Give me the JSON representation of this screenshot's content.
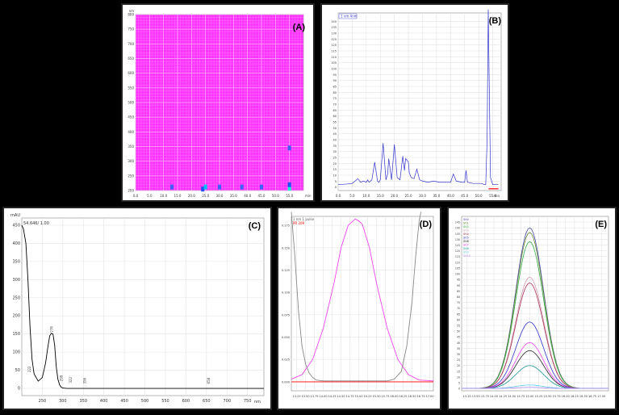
{
  "panels": {
    "a": {
      "label": "(A)"
    },
    "b": {
      "label": "(B)"
    },
    "c": {
      "label": "(C)"
    },
    "d": {
      "label": "(D)"
    },
    "e": {
      "label": "(E)"
    }
  },
  "chart_data": [
    {
      "id": "A",
      "type": "heatmap",
      "title": "",
      "xlabel": "min",
      "ylabel": "nm",
      "x_ticks": [
        "0.0",
        "5.0",
        "10.0",
        "15.0",
        "20.0",
        "25.0",
        "30.0",
        "35.0",
        "40.0",
        "45.0",
        "50.0",
        "55.0"
      ],
      "y_ticks": [
        "200",
        "250",
        "300",
        "350",
        "400",
        "450",
        "500",
        "550",
        "600",
        "650",
        "700",
        "750",
        "800"
      ],
      "xlim": [
        0,
        60
      ],
      "ylim": [
        200,
        800
      ],
      "background_color": "#ff33ff",
      "hotspots": [
        {
          "x": 24,
          "y": 205,
          "color": "#1f4fff"
        },
        {
          "x": 25,
          "y": 212,
          "color": "#00bfff"
        },
        {
          "x": 55,
          "y": 208,
          "color": "#00ffcc"
        },
        {
          "x": 55,
          "y": 220,
          "color": "#1f4fff"
        },
        {
          "x": 13,
          "y": 212,
          "color": "#3f5fff"
        },
        {
          "x": 30,
          "y": 212,
          "color": "#3f5fff"
        },
        {
          "x": 38,
          "y": 212,
          "color": "#3f5fff"
        },
        {
          "x": 45,
          "y": 212,
          "color": "#3f5fff"
        },
        {
          "x": 55,
          "y": 345,
          "color": "#3f5fff"
        }
      ]
    },
    {
      "id": "B",
      "type": "line",
      "title": "",
      "legend": [
        "1 nm 4nm"
      ],
      "xlabel": "min",
      "x_ticks": [
        "0.0",
        "5.0",
        "10.0",
        "15.0",
        "20.0",
        "25.0",
        "30.0",
        "35.0",
        "40.0",
        "45.0",
        "50.0",
        "55.0"
      ],
      "y_ticks": [
        "0",
        "5",
        "10",
        "15",
        "20",
        "25",
        "30",
        "35",
        "40",
        "45",
        "50",
        "55",
        "60",
        "65",
        "70",
        "75",
        "80",
        "85",
        "90",
        "95",
        "100",
        "105",
        "110",
        "115",
        "120",
        "125",
        "130",
        "135",
        "140"
      ],
      "xlim": [
        0,
        58
      ],
      "ylim": [
        -3,
        147
      ],
      "series": [
        {
          "color": "#3333cc",
          "x": [
            0,
            3,
            5,
            7,
            8,
            9,
            10,
            10.5,
            11,
            12,
            13,
            14,
            14.5,
            15,
            16,
            17,
            17.6,
            18,
            19,
            20,
            21,
            22,
            23,
            23.6,
            24,
            25,
            25.3,
            26,
            27,
            28,
            29,
            30,
            32,
            34,
            36,
            38,
            40,
            41,
            42,
            44,
            45,
            45.5,
            46,
            48,
            50,
            51,
            52,
            52.5,
            53,
            53.4,
            53.8,
            54.2,
            55,
            56,
            57
          ],
          "y": [
            2,
            2.5,
            3,
            7,
            4,
            5,
            4,
            6,
            4,
            6,
            21,
            5,
            4,
            6,
            37,
            6,
            11,
            24,
            6,
            36,
            8,
            6,
            26,
            14,
            24,
            21,
            12,
            8,
            7,
            15,
            6,
            5,
            4,
            5,
            4,
            4,
            4,
            11,
            5,
            4,
            4,
            14,
            4,
            3,
            3,
            3,
            2,
            2,
            40,
            150,
            80,
            8,
            2,
            2,
            2
          ]
        },
        {
          "color": "#ff0000",
          "x": [
            53.5,
            57
          ],
          "y": [
            -1.5,
            -1.5
          ]
        }
      ]
    },
    {
      "id": "C",
      "type": "line",
      "title": "",
      "legend": [
        "54.646/ 1.00"
      ],
      "ylabel": "mAU",
      "xlabel": "nm",
      "x_ticks": [
        "250",
        "300",
        "350",
        "400",
        "450",
        "500",
        "550",
        "600",
        "650",
        "700",
        "750"
      ],
      "y_ticks": [
        "0",
        "50",
        "100",
        "150",
        "200",
        "250",
        "300",
        "350",
        "400",
        "450"
      ],
      "xlim": [
        200,
        790
      ],
      "ylim": [
        -20,
        470
      ],
      "annotations": [
        {
          "x": 222,
          "y": 40,
          "label": "222"
        },
        {
          "x": 276,
          "y": 150,
          "label": "276"
        },
        {
          "x": 299,
          "y": 15,
          "label": "299"
        },
        {
          "x": 322,
          "y": 10,
          "label": "322"
        },
        {
          "x": 356,
          "y": 8,
          "label": "356"
        },
        {
          "x": 658,
          "y": 8,
          "label": "658"
        }
      ],
      "series": [
        {
          "color": "#000000",
          "x": [
            200,
            204,
            210,
            215,
            220,
            225,
            230,
            240,
            250,
            258,
            263,
            268,
            272,
            276,
            280,
            284,
            288,
            292,
            296,
            300,
            310,
            330,
            360,
            400,
            450,
            500,
            600,
            700,
            790
          ],
          "y": [
            450,
            440,
            400,
            300,
            170,
            80,
            40,
            20,
            30,
            70,
            110,
            145,
            152,
            150,
            120,
            60,
            25,
            10,
            3,
            1,
            0,
            0,
            0,
            0,
            0,
            0,
            0,
            0,
            0
          ]
        }
      ]
    },
    {
      "id": "D",
      "type": "line",
      "title": "",
      "legend": [
        "1 nm 1 pulse",
        "PR 209"
      ],
      "x_ticks": [
        "13.25",
        "13.50",
        "13.75",
        "14.00",
        "14.25",
        "14.50",
        "14.75",
        "15.00",
        "15.25",
        "15.50",
        "15.75",
        "16.00",
        "16.25",
        "16.50",
        "16.75",
        "17.00"
      ],
      "y_ticks": [
        "0.000",
        "0.025",
        "0.050",
        "0.075",
        "0.100",
        "0.125",
        "0.150",
        "0.175"
      ],
      "xlim": [
        13.1,
        17.1
      ],
      "ylim": [
        -0.01,
        0.185
      ],
      "series": [
        {
          "color": "#ee44ee",
          "x": [
            13.1,
            13.4,
            13.7,
            14.0,
            14.3,
            14.5,
            14.7,
            14.9,
            15.0,
            15.1,
            15.3,
            15.5,
            15.8,
            16.1,
            16.4,
            16.7,
            17.1
          ],
          "y": [
            0.003,
            0.008,
            0.025,
            0.06,
            0.11,
            0.15,
            0.175,
            0.182,
            0.18,
            0.176,
            0.15,
            0.11,
            0.06,
            0.025,
            0.008,
            0.002,
            0.001
          ]
        },
        {
          "color": "#888888",
          "x": [
            13.1,
            13.2,
            13.3,
            13.4,
            13.5,
            13.6,
            13.7,
            13.8,
            14.0,
            15.8,
            16.0,
            16.2,
            16.35,
            16.5,
            16.6,
            16.7,
            16.75
          ],
          "y": [
            0.19,
            0.14,
            0.08,
            0.04,
            0.02,
            0.01,
            0.005,
            0.002,
            0.001,
            0.001,
            0.003,
            0.012,
            0.04,
            0.09,
            0.14,
            0.18,
            0.19
          ]
        },
        {
          "color": "#ff0000",
          "x": [
            13.1,
            17.1
          ],
          "y": [
            0.0,
            0.0
          ]
        }
      ]
    },
    {
      "id": "E",
      "type": "line",
      "title": "",
      "x_ticks": [
        "13.25",
        "13.50",
        "13.75",
        "14.00",
        "14.25",
        "14.50",
        "14.75",
        "15.00",
        "15.25",
        "15.50",
        "15.75",
        "16.00",
        "16.25",
        "16.50",
        "16.75",
        "17.00"
      ],
      "y_ticks": [
        "0",
        "5",
        "10",
        "15",
        "20",
        "25",
        "30",
        "35",
        "40",
        "45",
        "50",
        "55",
        "60",
        "65",
        "70",
        "75",
        "80",
        "85",
        "90",
        "95",
        "100",
        "105",
        "110",
        "115",
        "120",
        "125",
        "130",
        "135",
        "140",
        "145"
      ],
      "xlim": [
        13.1,
        17.2
      ],
      "ylim": [
        -2,
        150
      ],
      "legend": [
        "Sh0",
        "Sh1",
        "Sh2",
        "Sh3",
        "Sh4",
        "Sh5",
        "Sh6",
        "Sh7",
        "Sh8",
        "Sh9",
        "Sh10"
      ],
      "series": [
        {
          "color": "#4444aa",
          "peak": 140
        },
        {
          "color": "#668833",
          "peak": 136
        },
        {
          "color": "#33aa44",
          "peak": 128
        },
        {
          "color": "#cc99aa",
          "peak": 97
        },
        {
          "color": "#aa3355",
          "peak": 92
        },
        {
          "color": "#3333cc",
          "peak": 58
        },
        {
          "color": "#222222",
          "peak": 33
        },
        {
          "color": "#ee44ee",
          "peak": 40
        },
        {
          "color": "#229999",
          "peak": 20
        },
        {
          "color": "#66ccee",
          "peak": 3
        },
        {
          "color": "#aa88ee",
          "peak": 1
        }
      ],
      "center": 15.0,
      "width": 0.55
    }
  ]
}
